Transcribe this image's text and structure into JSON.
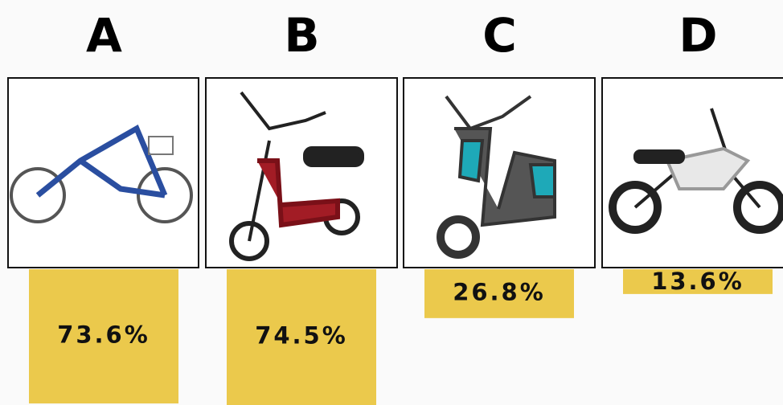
{
  "chart_data": {
    "type": "bar",
    "categories": [
      "A",
      "B",
      "C",
      "D"
    ],
    "values": [
      73.6,
      74.5,
      26.8,
      13.6
    ],
    "value_labels": [
      "73.6%",
      "74.5%",
      "26.8%",
      "13.6%"
    ],
    "color": "#ebc94c"
  }
}
